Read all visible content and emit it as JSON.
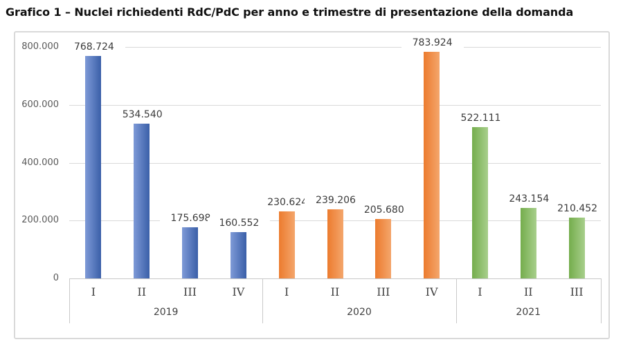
{
  "title": "Grafico 1 – Nuclei richiedenti RdC/PdC per anno e trimestre di presentazione della domanda",
  "chart_data": {
    "type": "bar",
    "title": "Grafico 1 – Nuclei richiedenti RdC/PdC per anno e trimestre di presentazione della domanda",
    "xlabel": "",
    "ylabel": "",
    "ylim": [
      0,
      800000
    ],
    "yticks": [
      0,
      200000,
      400000,
      600000,
      800000
    ],
    "ytick_labels": [
      "0",
      "200.000",
      "400.000",
      "600.000",
      "800.000"
    ],
    "grid": true,
    "legend": "none",
    "background": "#ffffff",
    "gridline_color": "#d9d9d9",
    "axis_color": "#c9c9c9",
    "groups": [
      {
        "year": "2019",
        "color": "#4472C4",
        "gradient": [
          "#7e9ad7",
          "#3a5fa8"
        ],
        "quarters": [
          "I",
          "II",
          "III",
          "IV"
        ],
        "values": [
          768724,
          534540,
          175698,
          160552
        ],
        "value_labels": [
          "768.724",
          "534.540",
          "175.698",
          "160.552"
        ]
      },
      {
        "year": "2020",
        "color": "#ED7D31",
        "gradient": [
          "#ec7b2e",
          "#f4a66c"
        ],
        "quarters": [
          "I",
          "II",
          "III",
          "IV"
        ],
        "values": [
          230624,
          239206,
          205680,
          783924
        ],
        "value_labels": [
          "230.624",
          "239.206",
          "205.680",
          "783.924"
        ]
      },
      {
        "year": "2021",
        "color": "#70AD47",
        "gradient": [
          "#74ad4c",
          "#a8cf8c"
        ],
        "quarters": [
          "I",
          "II",
          "III"
        ],
        "values": [
          522111,
          243154,
          210452
        ],
        "value_labels": [
          "522.111",
          "243.154",
          "210.452"
        ]
      }
    ]
  }
}
